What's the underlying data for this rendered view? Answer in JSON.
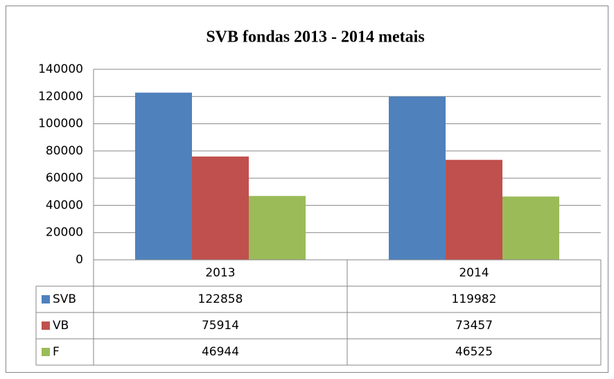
{
  "chart_data": {
    "type": "bar",
    "title": "SVB fondas 2013 - 2014 metais",
    "categories": [
      "2013",
      "2014"
    ],
    "series": [
      {
        "name": "SVB",
        "color": "#4f81bd",
        "values": [
          122858,
          119982
        ]
      },
      {
        "name": "VB",
        "color": "#c0504d",
        "values": [
          75914,
          73457
        ]
      },
      {
        "name": "F",
        "color": "#9bbb59",
        "values": [
          46944,
          46525
        ]
      }
    ],
    "ylim": [
      0,
      140000
    ],
    "yticks": [
      0,
      20000,
      40000,
      60000,
      80000,
      100000,
      120000,
      140000
    ],
    "grid": true,
    "data_table": true
  }
}
